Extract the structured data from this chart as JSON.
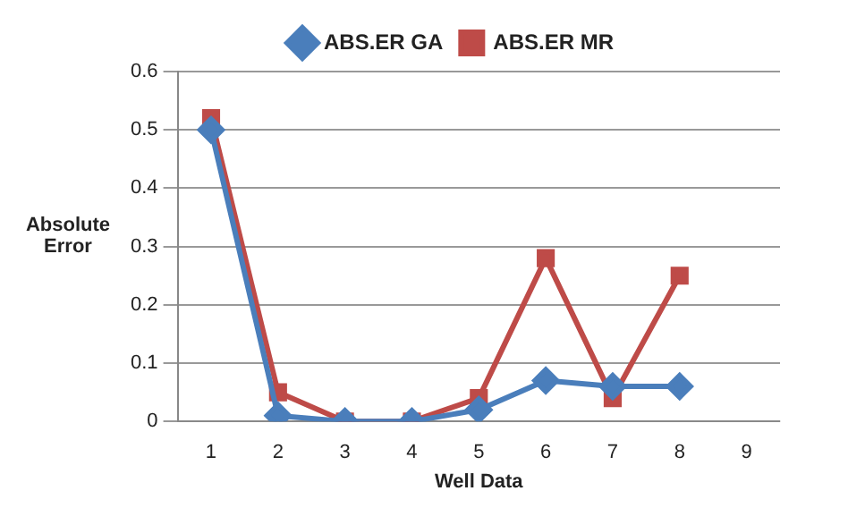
{
  "chart_data": {
    "type": "line",
    "xlabel": "Well Data",
    "ylabel": "Absolute Error",
    "categories": [
      "1",
      "2",
      "3",
      "4",
      "5",
      "6",
      "7",
      "8",
      "9"
    ],
    "series": [
      {
        "name": "ABS.ER GA",
        "color": "#4a7ebb",
        "marker": "diamond",
        "values": [
          0.5,
          0.01,
          0,
          0,
          0.02,
          0.07,
          0.06,
          0.06,
          null
        ]
      },
      {
        "name": "ABS.ER MR",
        "color": "#be4b48",
        "marker": "square",
        "values": [
          0.52,
          0.05,
          0,
          0,
          0.04,
          0.28,
          0.04,
          0.25,
          null
        ]
      }
    ],
    "ylim": [
      0,
      0.6
    ],
    "yticks": [
      0,
      0.1,
      0.2,
      0.3,
      0.4,
      0.5,
      0.6
    ],
    "grid": "y",
    "legend": "top"
  }
}
